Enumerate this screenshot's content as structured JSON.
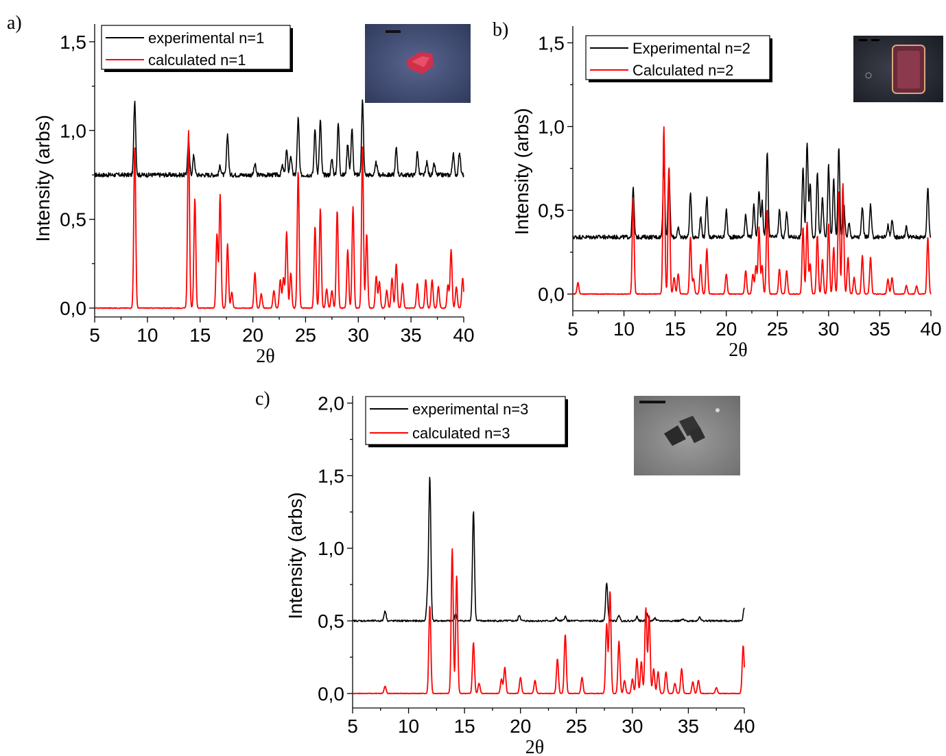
{
  "chart_data": [
    {
      "panel": "a)",
      "type": "line",
      "xlabel": "2θ",
      "ylabel": "Intensity (arbs)",
      "xlim": [
        5,
        40
      ],
      "ylim": [
        -0.05,
        1.6
      ],
      "xticks": [
        5,
        10,
        15,
        20,
        25,
        30,
        35,
        40
      ],
      "xtick_labels": [
        "5",
        "10",
        "15",
        "20",
        "25",
        "30",
        "35",
        "40"
      ],
      "yticks": [
        0,
        0.5,
        1.0,
        1.5
      ],
      "ytick_labels": [
        "0,0",
        "0,5",
        "1,0",
        "1,5"
      ],
      "legend_position": "top-left",
      "inset": "micrograph-of-red-crystal",
      "series": [
        {
          "name": "experimental n=1",
          "color": "#000000",
          "baseline": 0.75,
          "peaks": [
            [
              8.8,
              1.17
            ],
            [
              13.9,
              0.94
            ],
            [
              14.4,
              0.86
            ],
            [
              16.9,
              0.8
            ],
            [
              17.6,
              0.98
            ],
            [
              20.2,
              0.81
            ],
            [
              22.8,
              0.8
            ],
            [
              23.2,
              0.89
            ],
            [
              23.6,
              0.86
            ],
            [
              24.3,
              1.07
            ],
            [
              25.9,
              1.01
            ],
            [
              26.4,
              1.06
            ],
            [
              27.5,
              0.84
            ],
            [
              28.1,
              1.04
            ],
            [
              29.0,
              0.93
            ],
            [
              29.4,
              1.01
            ],
            [
              30.4,
              1.17
            ],
            [
              31.7,
              0.82
            ],
            [
              33.6,
              0.9
            ],
            [
              35.6,
              0.88
            ],
            [
              36.5,
              0.82
            ],
            [
              37.2,
              0.81
            ],
            [
              39.0,
              0.87
            ],
            [
              39.6,
              0.88
            ]
          ]
        },
        {
          "name": "calculated n=1",
          "color": "#ff0000",
          "baseline": 0.0,
          "peaks": [
            [
              8.8,
              0.91
            ],
            [
              13.9,
              1.0
            ],
            [
              14.5,
              0.62
            ],
            [
              16.6,
              0.42
            ],
            [
              16.9,
              0.64
            ],
            [
              17.6,
              0.36
            ],
            [
              18.0,
              0.09
            ],
            [
              20.2,
              0.2
            ],
            [
              20.8,
              0.08
            ],
            [
              22.0,
              0.1
            ],
            [
              22.6,
              0.16
            ],
            [
              22.9,
              0.17
            ],
            [
              23.2,
              0.43
            ],
            [
              23.6,
              0.2
            ],
            [
              24.3,
              0.77
            ],
            [
              25.9,
              0.46
            ],
            [
              26.4,
              0.56
            ],
            [
              27.0,
              0.11
            ],
            [
              27.5,
              0.1
            ],
            [
              28.0,
              0.55
            ],
            [
              29.0,
              0.33
            ],
            [
              29.5,
              0.57
            ],
            [
              30.4,
              0.91
            ],
            [
              30.8,
              0.42
            ],
            [
              31.7,
              0.18
            ],
            [
              32.0,
              0.15
            ],
            [
              32.7,
              0.1
            ],
            [
              33.2,
              0.17
            ],
            [
              33.6,
              0.25
            ],
            [
              34.2,
              0.14
            ],
            [
              35.6,
              0.14
            ],
            [
              36.4,
              0.16
            ],
            [
              37.0,
              0.16
            ],
            [
              37.6,
              0.12
            ],
            [
              38.5,
              0.13
            ],
            [
              38.8,
              0.33
            ],
            [
              39.3,
              0.12
            ],
            [
              39.9,
              0.17
            ]
          ]
        }
      ]
    },
    {
      "panel": "b)",
      "type": "line",
      "xlabel": "2θ",
      "ylabel": "Intensity (arbs)",
      "xlim": [
        5,
        40
      ],
      "ylim": [
        -0.1,
        1.6
      ],
      "xticks": [
        5,
        10,
        15,
        20,
        25,
        30,
        35,
        40
      ],
      "xtick_labels": [
        "5",
        "10",
        "15",
        "20",
        "25",
        "30",
        "35",
        "40"
      ],
      "yticks": [
        0,
        0.5,
        1.0,
        1.5
      ],
      "ytick_labels": [
        "0,0",
        "0,5",
        "1,0",
        "1,5"
      ],
      "legend_position": "top-left",
      "inset": "micrograph-of-dark-red-square-crystal",
      "series": [
        {
          "name": "Experimental n=2",
          "color": "#000000",
          "baseline": 0.34,
          "peaks": [
            [
              10.9,
              0.63
            ],
            [
              13.9,
              0.8
            ],
            [
              14.4,
              0.75
            ],
            [
              15.3,
              0.39
            ],
            [
              16.5,
              0.6
            ],
            [
              17.5,
              0.46
            ],
            [
              18.1,
              0.58
            ],
            [
              20.0,
              0.5
            ],
            [
              21.9,
              0.48
            ],
            [
              22.7,
              0.53
            ],
            [
              23.2,
              0.62
            ],
            [
              23.5,
              0.55
            ],
            [
              24.0,
              0.85
            ],
            [
              25.2,
              0.5
            ],
            [
              25.9,
              0.49
            ],
            [
              27.5,
              0.76
            ],
            [
              27.9,
              0.91
            ],
            [
              28.2,
              0.67
            ],
            [
              28.9,
              0.73
            ],
            [
              29.4,
              0.58
            ],
            [
              30.0,
              0.77
            ],
            [
              30.5,
              0.68
            ],
            [
              31.0,
              0.88
            ],
            [
              31.5,
              0.53
            ],
            [
              32.0,
              0.42
            ],
            [
              33.3,
              0.52
            ],
            [
              34.1,
              0.53
            ],
            [
              35.8,
              0.41
            ],
            [
              36.2,
              0.44
            ],
            [
              37.6,
              0.4
            ],
            [
              39.7,
              0.64
            ]
          ]
        },
        {
          "name": "Calculated n=2",
          "color": "#ff0000",
          "baseline": 0.0,
          "peaks": [
            [
              5.5,
              0.07
            ],
            [
              10.9,
              0.58
            ],
            [
              13.9,
              1.0
            ],
            [
              14.4,
              0.76
            ],
            [
              14.9,
              0.1
            ],
            [
              15.3,
              0.12
            ],
            [
              16.5,
              0.34
            ],
            [
              16.8,
              0.09
            ],
            [
              17.5,
              0.18
            ],
            [
              18.1,
              0.27
            ],
            [
              20.0,
              0.12
            ],
            [
              21.9,
              0.14
            ],
            [
              22.6,
              0.12
            ],
            [
              22.9,
              0.17
            ],
            [
              23.2,
              0.4
            ],
            [
              23.5,
              0.17
            ],
            [
              24.0,
              0.51
            ],
            [
              25.2,
              0.15
            ],
            [
              25.9,
              0.14
            ],
            [
              27.5,
              0.4
            ],
            [
              27.9,
              0.43
            ],
            [
              28.2,
              0.18
            ],
            [
              28.9,
              0.35
            ],
            [
              29.4,
              0.21
            ],
            [
              30.0,
              0.42
            ],
            [
              30.5,
              0.28
            ],
            [
              31.0,
              0.62
            ],
            [
              31.4,
              0.66
            ],
            [
              31.9,
              0.22
            ],
            [
              32.5,
              0.1
            ],
            [
              33.3,
              0.23
            ],
            [
              34.1,
              0.22
            ],
            [
              35.8,
              0.09
            ],
            [
              36.2,
              0.1
            ],
            [
              37.6,
              0.05
            ],
            [
              38.6,
              0.05
            ],
            [
              39.7,
              0.34
            ]
          ]
        }
      ]
    },
    {
      "panel": "c)",
      "type": "line",
      "xlabel": "2θ",
      "ylabel": "Intensity (arbs)",
      "xlim": [
        5,
        40
      ],
      "ylim": [
        -0.1,
        2.05
      ],
      "xticks": [
        5,
        10,
        15,
        20,
        25,
        30,
        35,
        40
      ],
      "xtick_labels": [
        "5",
        "10",
        "15",
        "20",
        "25",
        "30",
        "35",
        "40"
      ],
      "yticks": [
        0,
        0.5,
        1.0,
        1.5,
        2.0
      ],
      "ytick_labels": [
        "0,0",
        "0,5",
        "1,0",
        "1,5",
        "2,0"
      ],
      "legend_position": "top-left",
      "inset": "micrograph-of-dark-square-crystals",
      "series": [
        {
          "name": "experimental n=3",
          "color": "#000000",
          "baseline": 0.5,
          "peaks": [
            [
              7.9,
              0.57
            ],
            [
              11.7,
              0.68
            ],
            [
              11.9,
              1.48
            ],
            [
              14.2,
              0.55
            ],
            [
              15.8,
              1.26
            ],
            [
              19.9,
              0.54
            ],
            [
              23.2,
              0.52
            ],
            [
              24.0,
              0.53
            ],
            [
              27.7,
              0.76
            ],
            [
              28.8,
              0.54
            ],
            [
              30.4,
              0.53
            ],
            [
              31.3,
              0.55
            ],
            [
              32.0,
              0.52
            ],
            [
              34.5,
              0.51
            ],
            [
              36.0,
              0.53
            ],
            [
              40.0,
              0.59
            ]
          ]
        },
        {
          "name": "calculated n=3",
          "color": "#ff0000",
          "baseline": 0.0,
          "peaks": [
            [
              7.9,
              0.05
            ],
            [
              11.9,
              0.61
            ],
            [
              13.9,
              1.0
            ],
            [
              14.3,
              0.81
            ],
            [
              15.8,
              0.35
            ],
            [
              16.3,
              0.07
            ],
            [
              18.3,
              0.1
            ],
            [
              18.6,
              0.18
            ],
            [
              20.0,
              0.11
            ],
            [
              21.3,
              0.09
            ],
            [
              23.3,
              0.24
            ],
            [
              24.0,
              0.41
            ],
            [
              25.5,
              0.11
            ],
            [
              27.7,
              0.48
            ],
            [
              28.0,
              0.71
            ],
            [
              28.8,
              0.36
            ],
            [
              29.3,
              0.09
            ],
            [
              30.0,
              0.1
            ],
            [
              30.4,
              0.24
            ],
            [
              30.8,
              0.22
            ],
            [
              31.2,
              0.59
            ],
            [
              31.5,
              0.54
            ],
            [
              31.9,
              0.17
            ],
            [
              32.3,
              0.15
            ],
            [
              33.0,
              0.15
            ],
            [
              33.8,
              0.07
            ],
            [
              34.4,
              0.17
            ],
            [
              35.4,
              0.08
            ],
            [
              35.9,
              0.09
            ],
            [
              37.5,
              0.04
            ],
            [
              39.9,
              0.33
            ]
          ]
        }
      ]
    }
  ]
}
